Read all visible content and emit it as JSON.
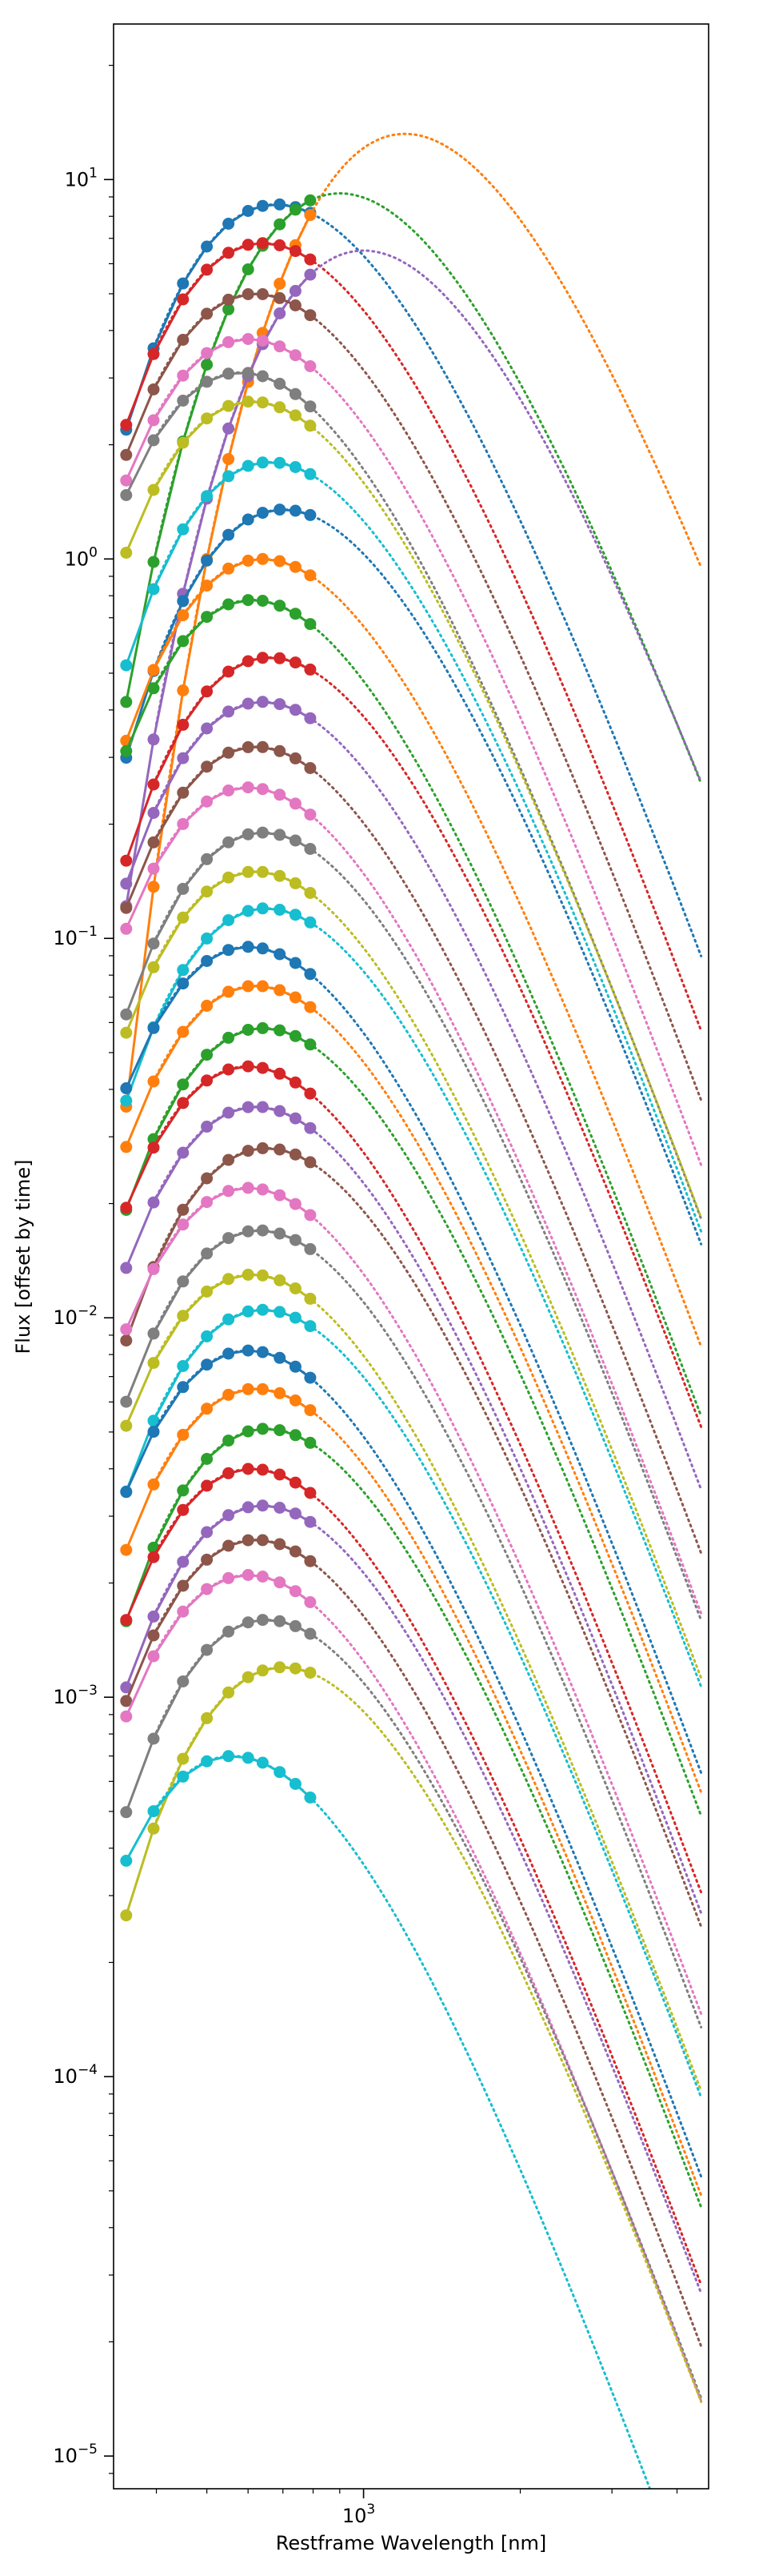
{
  "chart_data": {
    "type": "line",
    "title": "",
    "xlabel": "Restframe Wavelength [nm]",
    "ylabel": "Flux [offset by time]",
    "xscale": "log",
    "yscale": "log",
    "xlim": [
      331,
      4600
    ],
    "ylim": [
      8.2e-06,
      25.7
    ],
    "x_ticks": [
      {
        "value": 1000,
        "base": "10",
        "exp": "3"
      }
    ],
    "y_ticks": [
      {
        "value": 1e-05,
        "base": "10",
        "exp": "−5"
      },
      {
        "value": 0.0001,
        "base": "10",
        "exp": "−4"
      },
      {
        "value": 0.001,
        "base": "10",
        "exp": "−3"
      },
      {
        "value": 0.01,
        "base": "10",
        "exp": "−2"
      },
      {
        "value": 0.1,
        "base": "10",
        "exp": "−1"
      },
      {
        "value": 1,
        "base": "10",
        "exp": "0"
      },
      {
        "value": 10,
        "base": "10",
        "exp": "1"
      }
    ],
    "grid": false,
    "legend": "none",
    "colors": [
      "#1f77b4",
      "#ff7f0e",
      "#2ca02c",
      "#d62728",
      "#9467bd",
      "#8c564b",
      "#e377c2",
      "#7f7f7f",
      "#bcbd22",
      "#17becf"
    ],
    "band_wavelengths_nm": [
      350,
      395,
      450,
      500,
      550,
      600,
      640,
      690,
      740,
      790
    ],
    "series_style": "observed photometry: solid line with circle markers; blackbody fit: dotted line",
    "series": [
      {
        "peak_nm": 680,
        "peak_flux": 8.6
      },
      {
        "peak_nm": 1200,
        "peak_flux": 13.2
      },
      {
        "peak_nm": 900,
        "peak_flux": 9.2
      },
      {
        "peak_nm": 640,
        "peak_flux": 6.8
      },
      {
        "peak_nm": 1000,
        "peak_flux": 6.5
      },
      {
        "peak_nm": 620,
        "peak_flux": 5.0
      },
      {
        "peak_nm": 600,
        "peak_flux": 3.8
      },
      {
        "peak_nm": 580,
        "peak_flux": 3.1
      },
      {
        "peak_nm": 610,
        "peak_flux": 2.6
      },
      {
        "peak_nm": 660,
        "peak_flux": 1.8
      },
      {
        "peak_nm": 700,
        "peak_flux": 1.35
      },
      {
        "peak_nm": 640,
        "peak_flux": 1.0
      },
      {
        "peak_nm": 610,
        "peak_flux": 0.78
      },
      {
        "peak_nm": 660,
        "peak_flux": 0.55
      },
      {
        "peak_nm": 640,
        "peak_flux": 0.42
      },
      {
        "peak_nm": 620,
        "peak_flux": 0.32
      },
      {
        "peak_nm": 600,
        "peak_flux": 0.25
      },
      {
        "peak_nm": 640,
        "peak_flux": 0.19
      },
      {
        "peak_nm": 620,
        "peak_flux": 0.15
      },
      {
        "peak_nm": 650,
        "peak_flux": 0.12
      },
      {
        "peak_nm": 600,
        "peak_flux": 0.095
      },
      {
        "peak_nm": 620,
        "peak_flux": 0.075
      },
      {
        "peak_nm": 640,
        "peak_flux": 0.058
      },
      {
        "peak_nm": 600,
        "peak_flux": 0.046
      },
      {
        "peak_nm": 620,
        "peak_flux": 0.036
      },
      {
        "peak_nm": 650,
        "peak_flux": 0.028
      },
      {
        "peak_nm": 600,
        "peak_flux": 0.022
      },
      {
        "peak_nm": 630,
        "peak_flux": 0.017
      },
      {
        "peak_nm": 610,
        "peak_flux": 0.013
      },
      {
        "peak_nm": 640,
        "peak_flux": 0.0105
      },
      {
        "peak_nm": 600,
        "peak_flux": 0.0082
      },
      {
        "peak_nm": 620,
        "peak_flux": 0.0065
      },
      {
        "peak_nm": 650,
        "peak_flux": 0.0051
      },
      {
        "peak_nm": 610,
        "peak_flux": 0.004
      },
      {
        "peak_nm": 640,
        "peak_flux": 0.0032
      },
      {
        "peak_nm": 620,
        "peak_flux": 0.0026
      },
      {
        "peak_nm": 600,
        "peak_flux": 0.0021
      },
      {
        "peak_nm": 650,
        "peak_flux": 0.0016
      },
      {
        "peak_nm": 700,
        "peak_flux": 0.0012
      },
      {
        "peak_nm": 560,
        "peak_flux": 0.0007
      }
    ]
  }
}
